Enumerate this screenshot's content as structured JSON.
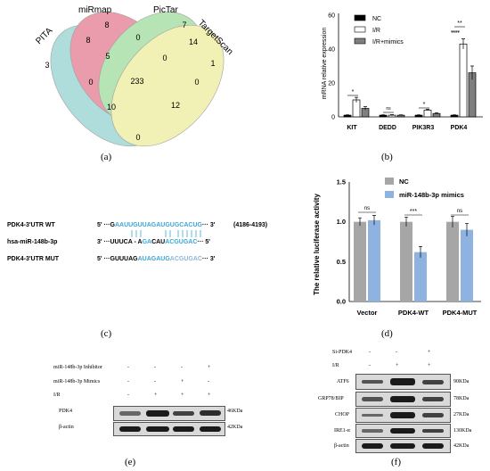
{
  "venn": {
    "set_labels": [
      "PITA",
      "miRmap",
      "PicTar",
      "TargetScan"
    ],
    "region_counts": [
      "3",
      "8",
      "7",
      "1",
      "8",
      "0",
      "14",
      "5",
      "0",
      "233",
      "0",
      "0",
      "10",
      "12",
      "0"
    ],
    "colors": [
      "#6fc2c0",
      "#d94a6a",
      "#7dcf7a",
      "#e7e77a"
    ]
  },
  "panel_b": {
    "chart_data": {
      "type": "bar",
      "categories": [
        "KIT",
        "DEDD",
        "PIK3R3",
        "PDK4"
      ],
      "series": [
        {
          "name": "NC",
          "values": [
            1,
            1,
            1,
            1
          ],
          "errors": [
            0.2,
            0.2,
            0.2,
            0.2
          ],
          "color": "#000000"
        },
        {
          "name": "I/R",
          "values": [
            10,
            1,
            4,
            43
          ],
          "errors": [
            1.5,
            0.3,
            0.4,
            3
          ],
          "color": "#ffffff"
        },
        {
          "name": "I/R+mimics",
          "values": [
            5,
            1,
            2,
            26
          ],
          "errors": [
            1,
            0.2,
            0.3,
            4
          ],
          "color": "#7f7f7f"
        }
      ],
      "ylabel": "mRNA relative expression",
      "ylim": [
        0,
        60
      ],
      "yticks": [
        "0",
        "20",
        "40",
        "60"
      ],
      "significance": [
        "*",
        "ns",
        "*",
        "**",
        "****"
      ]
    }
  },
  "panel_c": {
    "rows": [
      {
        "name": "PDK4-3'UTR WT",
        "prefix": "5' ···",
        "suffix": "··· 3'",
        "note": "(4186-4193)"
      },
      {
        "name": "hsa-miR-148b-3p",
        "prefix": "3' ···",
        "suffix": "··· 5'"
      },
      {
        "name": "PDK4-3'UTR MUT",
        "prefix": "5' ···",
        "suffix": "··· 3'"
      }
    ],
    "wt_black": "G",
    "wt_blue": "AAUUGUUAGAUGUGCACUG",
    "mir_black": "UUUCA",
    "mir_mid1": " - A",
    "mir_blue1": "GA",
    "mir_mid2": "CAU",
    "mir_blue2": "ACGUGAC",
    "mut_a": "GUUUAG",
    "mut_b": "AUAGAUG",
    "mut_c": "ACGUGAC"
  },
  "panel_d": {
    "chart_data": {
      "type": "bar",
      "categories": [
        "Vector",
        "PDK4-WT",
        "PDK4-MUT"
      ],
      "series": [
        {
          "name": "NC",
          "values": [
            1.0,
            1.0,
            1.0
          ],
          "errors": [
            0.05,
            0.06,
            0.07
          ],
          "color": "#a6a6a6"
        },
        {
          "name": "miR-148b-3p mimics",
          "values": [
            1.02,
            0.62,
            0.9
          ],
          "errors": [
            0.06,
            0.07,
            0.08
          ],
          "color": "#8fb3e0"
        }
      ],
      "ylabel": "The relative luciferase activity",
      "ylim": [
        0,
        1.5
      ],
      "yticks": [
        "0.0",
        "0.5",
        "1.0",
        "1.5"
      ],
      "significance": [
        "ns",
        "***",
        "ns"
      ]
    }
  },
  "panel_e": {
    "conditions": [
      {
        "label": "miR-148b-3p Inhibitor",
        "values": [
          "-",
          "-",
          "-",
          "+"
        ]
      },
      {
        "label": "miR-148b-3p Mimics",
        "values": [
          "-",
          "-",
          "+",
          "-"
        ]
      },
      {
        "label": "I/R",
        "values": [
          "-",
          "+",
          "+",
          "+"
        ]
      }
    ],
    "blots": [
      {
        "protein": "PDK4",
        "kda": "46KDa"
      },
      {
        "protein": "β-actin",
        "kda": "42KDa"
      }
    ]
  },
  "panel_f": {
    "conditions": [
      {
        "label": "Si-PDK4",
        "values": [
          "-",
          "-",
          "+"
        ]
      },
      {
        "label": "I/R",
        "values": [
          "-",
          "+",
          "+"
        ]
      }
    ],
    "blots": [
      {
        "protein": "ATF6",
        "kda": "90KDa"
      },
      {
        "protein": "GRP78/BIP",
        "kda": "78KDa"
      },
      {
        "protein": "CHOP",
        "kda": "27KDa"
      },
      {
        "protein": "IRE1-α",
        "kda": "130KDa"
      },
      {
        "protein": "β-actin",
        "kda": "42KDa"
      }
    ]
  },
  "captions": {
    "a": "(a)",
    "b": "(b)",
    "c": "(c)",
    "d": "(d)",
    "e": "(e)",
    "f": "(f)"
  }
}
